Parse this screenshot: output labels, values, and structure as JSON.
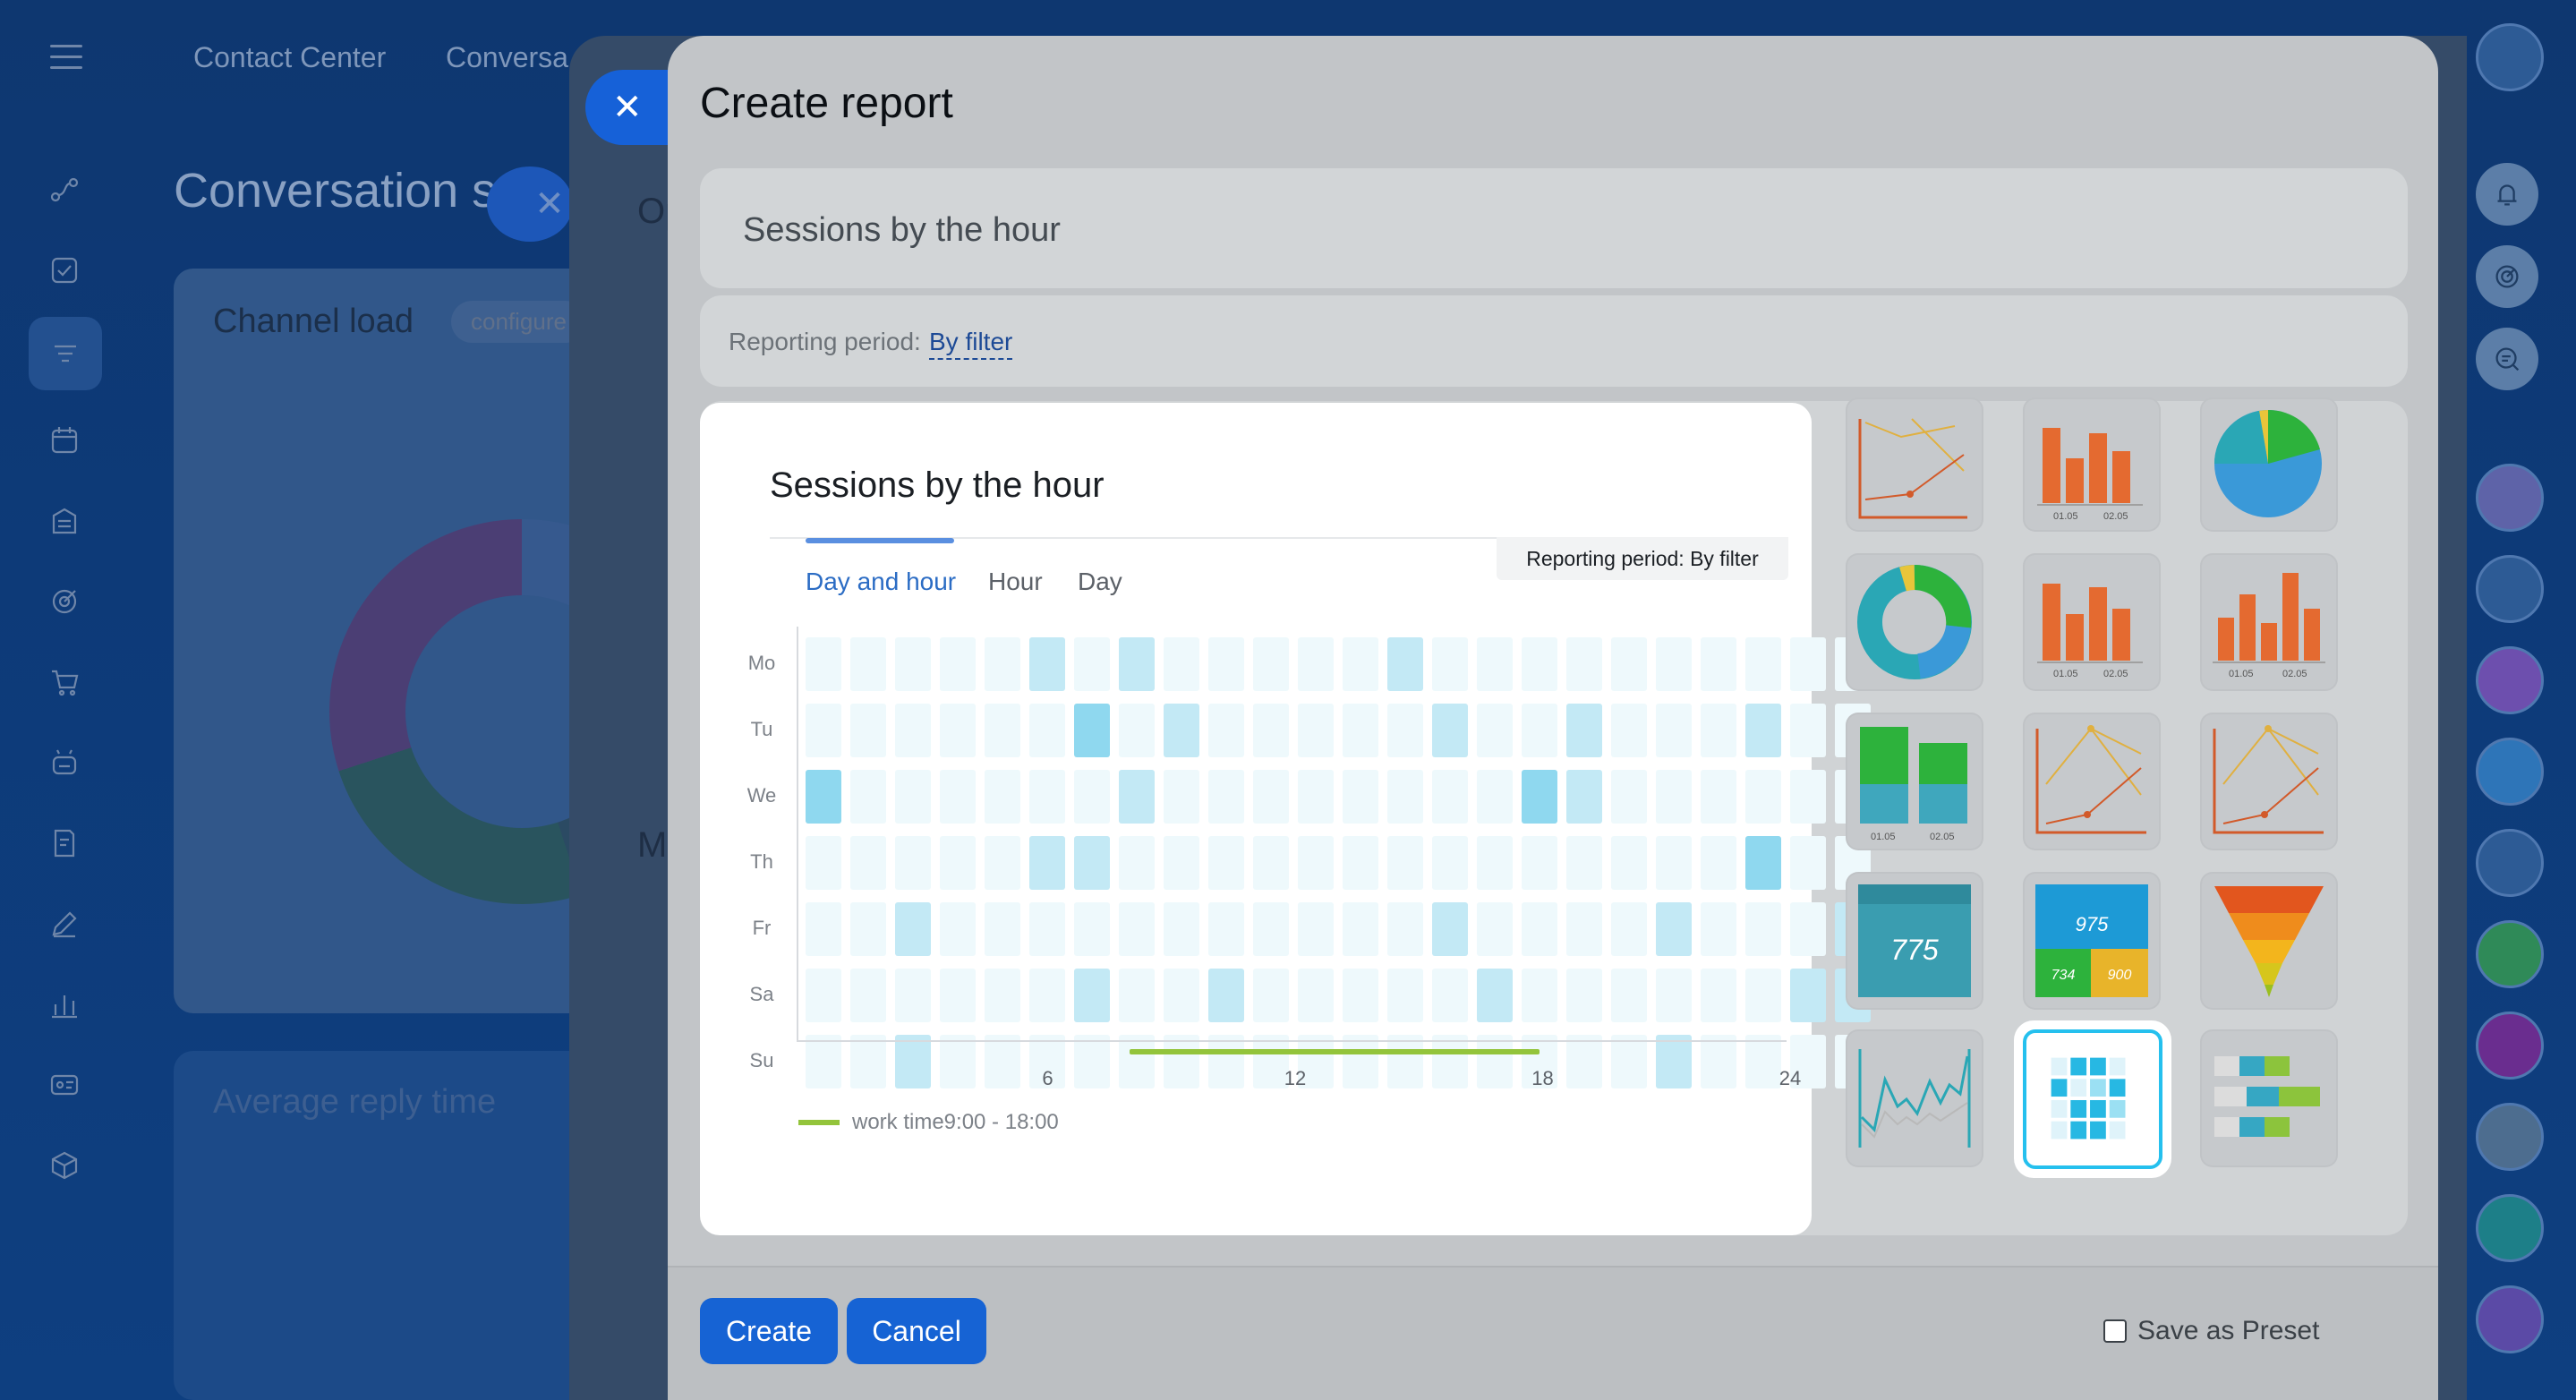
{
  "app": {
    "top_links": [
      "Contact Center",
      "Conversa"
    ],
    "page_title": "Conversation s",
    "channel_card": {
      "title": "Channel load",
      "pill": "configure"
    },
    "avg_card": {
      "title": "Average reply time"
    },
    "mid_fragments": [
      "Op",
      "M"
    ]
  },
  "modal": {
    "title": "Create report",
    "report_name": "Sessions by the hour",
    "period_label": "Reporting period:",
    "period_value": "By filter",
    "create_label": "Create",
    "cancel_label": "Cancel",
    "preset_label": "Save as Preset"
  },
  "preview": {
    "title": "Sessions by the hour",
    "tabs": [
      "Day and hour",
      "Hour",
      "Day"
    ],
    "active_tab": 0,
    "period_badge": "Reporting period: By filter",
    "legend": "work time9:00 - 18:00"
  },
  "chart_data": {
    "type": "heatmap",
    "title": "Sessions by the hour",
    "y_categories": [
      "Mo",
      "Tu",
      "We",
      "Th",
      "Fr",
      "Sa",
      "Su"
    ],
    "x_range": [
      0,
      24
    ],
    "x_ticks": [
      6,
      12,
      18,
      24
    ],
    "work_time": {
      "label": "work time9:00 - 18:00",
      "start": 9,
      "end": 18
    },
    "values": [
      [
        0,
        0,
        0,
        0,
        0,
        1,
        0,
        1,
        0,
        0,
        0,
        0,
        0,
        1,
        0,
        0,
        0,
        0,
        0,
        0,
        0,
        0,
        0,
        0
      ],
      [
        0,
        0,
        0,
        0,
        0,
        0,
        2,
        0,
        1,
        0,
        0,
        0,
        0,
        0,
        1,
        0,
        0,
        1,
        0,
        0,
        0,
        1,
        0,
        0
      ],
      [
        2,
        0,
        0,
        0,
        0,
        0,
        0,
        1,
        0,
        0,
        0,
        0,
        0,
        0,
        0,
        0,
        2,
        1,
        0,
        0,
        0,
        0,
        0,
        0
      ],
      [
        0,
        0,
        0,
        0,
        0,
        1,
        1,
        0,
        0,
        0,
        0,
        0,
        0,
        0,
        0,
        0,
        0,
        0,
        0,
        0,
        0,
        2,
        0,
        0
      ],
      [
        0,
        0,
        1,
        0,
        0,
        0,
        0,
        0,
        0,
        0,
        0,
        0,
        0,
        0,
        1,
        0,
        0,
        0,
        0,
        1,
        0,
        0,
        0,
        1
      ],
      [
        0,
        0,
        0,
        0,
        0,
        0,
        1,
        0,
        0,
        1,
        0,
        0,
        0,
        0,
        0,
        1,
        0,
        0,
        0,
        0,
        0,
        0,
        1,
        1
      ],
      [
        0,
        0,
        1,
        0,
        0,
        0,
        0,
        0,
        0,
        0,
        0,
        0,
        0,
        0,
        0,
        0,
        0,
        0,
        0,
        1,
        0,
        0,
        0,
        0
      ]
    ],
    "colors": [
      "#eef9fc",
      "#c3e9f5",
      "#8fd8ef"
    ]
  },
  "thumbnails": [
    "line-chart-icon",
    "bar-chart-icon",
    "pie-chart-icon",
    "donut-chart-icon",
    "bar-chart-dates-icon",
    "bar-chart-dates-alt-icon",
    "stacked-bar-icon",
    "line-chart-alt-icon",
    "line-chart-alt2-icon",
    "number-widget-icon",
    "number-grid-icon",
    "funnel-icon",
    "sparkline-icon",
    "heatmap-icon",
    "horizontal-bars-icon"
  ],
  "thumbnail_text": {
    "date_a": "01.05",
    "date_b": "02.05",
    "big_number": "775",
    "grid_number": "975",
    "grid_small_a": "734",
    "grid_small_b": "900"
  },
  "colors": {
    "accent": "#1663d4",
    "work_time": "#93c43b",
    "tab_active": "#2b6cc4",
    "selected_border": "#25c0ee"
  }
}
